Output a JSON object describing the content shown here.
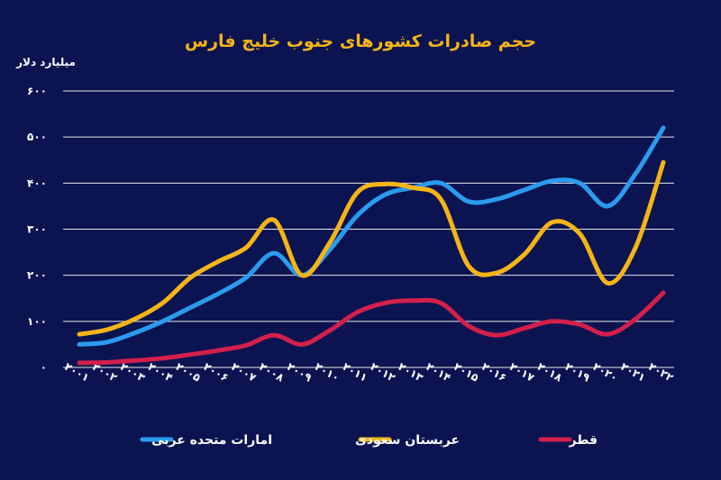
{
  "chart_data": {
    "type": "line",
    "title": "حجم صادرات کشورهای جنوب خلیج فارس",
    "ylabel": "میلیارد دلار",
    "xlabel": "",
    "ylim": [
      0,
      600
    ],
    "yticks": [
      0,
      100,
      200,
      300,
      400,
      500,
      600
    ],
    "ytick_labels": [
      "٠",
      "١٠٠",
      "٢٠٠",
      "٣٠٠",
      "۴٠٠",
      "۵٠٠",
      "۶٠٠"
    ],
    "x": [
      2001,
      2002,
      2003,
      2004,
      2005,
      2006,
      2007,
      2008,
      2009,
      2010,
      2011,
      2012,
      2013,
      2014,
      2015,
      2016,
      2017,
      2018,
      2019,
      2020,
      2021,
      2022
    ],
    "x_labels": [
      "٢٠٠١",
      "٢٠٠٢",
      "٢٠٠٣",
      "٢٠٠۴",
      "٢٠٠۵",
      "٢٠٠۶",
      "٢٠٠٧",
      "٢٠٠٨",
      "٢٠٠٩",
      "٢٠١٠",
      "٢٠١١",
      "٢٠١٢",
      "٢٠١٣",
      "٢٠١۴",
      "٢٠١۵",
      "٢٠١۶",
      "٢٠١٧",
      "٢٠١٨",
      "٢٠١٩",
      "٢٠٢٠",
      "٢٠٢١",
      "٢٠٢٢"
    ],
    "grid": true,
    "legend_position": "bottom",
    "series": [
      {
        "name": "امارات متحده عربی",
        "color": "#2b9bef",
        "values": [
          50,
          55,
          75,
          100,
          130,
          160,
          195,
          248,
          200,
          255,
          330,
          375,
          390,
          400,
          360,
          365,
          385,
          405,
          400,
          350,
          420,
          520
        ]
      },
      {
        "name": "عربستان سعودی",
        "color": "#f5b416",
        "values": [
          72,
          82,
          105,
          140,
          195,
          230,
          260,
          320,
          200,
          270,
          380,
          398,
          390,
          365,
          220,
          205,
          245,
          315,
          290,
          183,
          260,
          445
        ]
      },
      {
        "name": "قطر",
        "color": "#d31f4b",
        "values": [
          10,
          11,
          15,
          20,
          28,
          37,
          48,
          70,
          50,
          80,
          120,
          140,
          145,
          140,
          90,
          70,
          85,
          100,
          93,
          72,
          105,
          162
        ]
      }
    ]
  }
}
